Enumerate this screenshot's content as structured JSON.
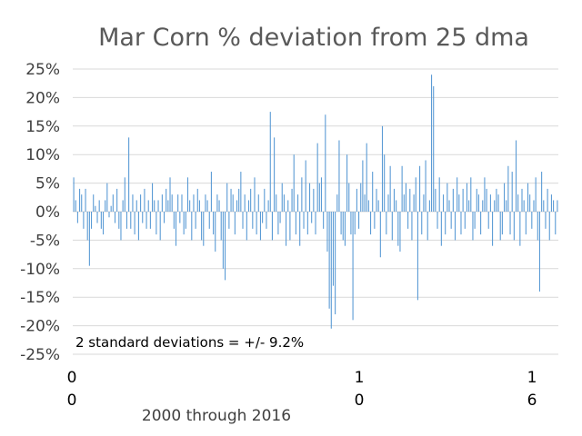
{
  "chart_data": {
    "type": "bar",
    "title": "Mar Corn % deviation from 25 dma",
    "xlabel": "2000 through 2016",
    "ylabel": "",
    "ylim": [
      -25,
      25
    ],
    "y_ticks": [
      "25%",
      "20%",
      "15%",
      "10%",
      "5%",
      "0%",
      "-5%",
      "-10%",
      "-15%",
      "-20%",
      "-25%"
    ],
    "x_ticks": [
      {
        "line1": "0",
        "line2": "0"
      },
      {
        "line1": "1",
        "line2": "0"
      },
      {
        "line1": "1",
        "line2": "6"
      }
    ],
    "annotation": "2 standard deviations = +/- 9.2%",
    "grid": true,
    "legend": "none",
    "color": "#5b9bd5",
    "series": [
      {
        "values": [
          6,
          2,
          -2,
          4,
          3,
          -3,
          4,
          -5,
          -9.5,
          -3,
          3,
          1,
          -2,
          2,
          -3,
          -4,
          2,
          5,
          -1,
          1,
          3,
          -2,
          4,
          -3,
          -5,
          2,
          6,
          -3,
          13,
          -3,
          3,
          -4,
          2,
          -5,
          3,
          -2,
          4,
          -3,
          2,
          -3,
          5,
          2,
          -4,
          2,
          -5,
          3,
          -2,
          4,
          2,
          6,
          3,
          -3,
          -6,
          3,
          -2,
          3,
          -4,
          -3,
          6,
          2,
          -5,
          3,
          -3,
          4,
          2,
          -5,
          -6,
          3,
          2,
          -3,
          7,
          -4,
          -7,
          3,
          2,
          -5,
          -10,
          -12,
          5,
          -3,
          4,
          3,
          -4,
          2,
          4,
          7,
          -3,
          3,
          -5,
          2,
          4,
          -3,
          6,
          -4,
          3,
          -5,
          -2,
          4,
          -3,
          2,
          17.5,
          -5,
          13,
          3,
          -4,
          -2,
          5,
          3,
          -6,
          2,
          -5,
          4,
          10,
          -4,
          3,
          -6,
          6,
          -3,
          9,
          -4,
          5,
          -2,
          4,
          -4,
          12,
          5,
          6,
          -3,
          17,
          -7,
          -17,
          -20.5,
          -13,
          -18,
          3,
          12.5,
          -4,
          -5,
          -6,
          10,
          5,
          -4,
          -19,
          -4,
          4,
          -3,
          5,
          9,
          3,
          12,
          2,
          -4,
          7,
          -3,
          4,
          2,
          -8,
          15,
          10,
          -4,
          3,
          8,
          -5,
          4,
          2,
          -6,
          -7,
          8,
          3,
          5,
          -3,
          4,
          -5,
          3,
          6,
          -15.5,
          8,
          -4,
          3,
          9,
          -5,
          2,
          24,
          22,
          4,
          -3,
          6,
          -6,
          3,
          -4,
          5,
          2,
          -3,
          4,
          -5,
          6,
          3,
          -4,
          4,
          -3,
          5,
          2,
          6,
          -5,
          -3,
          4,
          3,
          -4,
          2,
          6,
          4,
          -3,
          3,
          -6,
          2,
          4,
          3,
          -5,
          -4,
          5,
          2,
          8,
          -4,
          7,
          -5,
          12.5,
          3,
          -6,
          4,
          2,
          -4,
          5,
          3,
          -3,
          2,
          6,
          -5,
          -14,
          7,
          2,
          -3,
          4,
          -5,
          3,
          2,
          -4,
          2
        ]
      }
    ]
  }
}
